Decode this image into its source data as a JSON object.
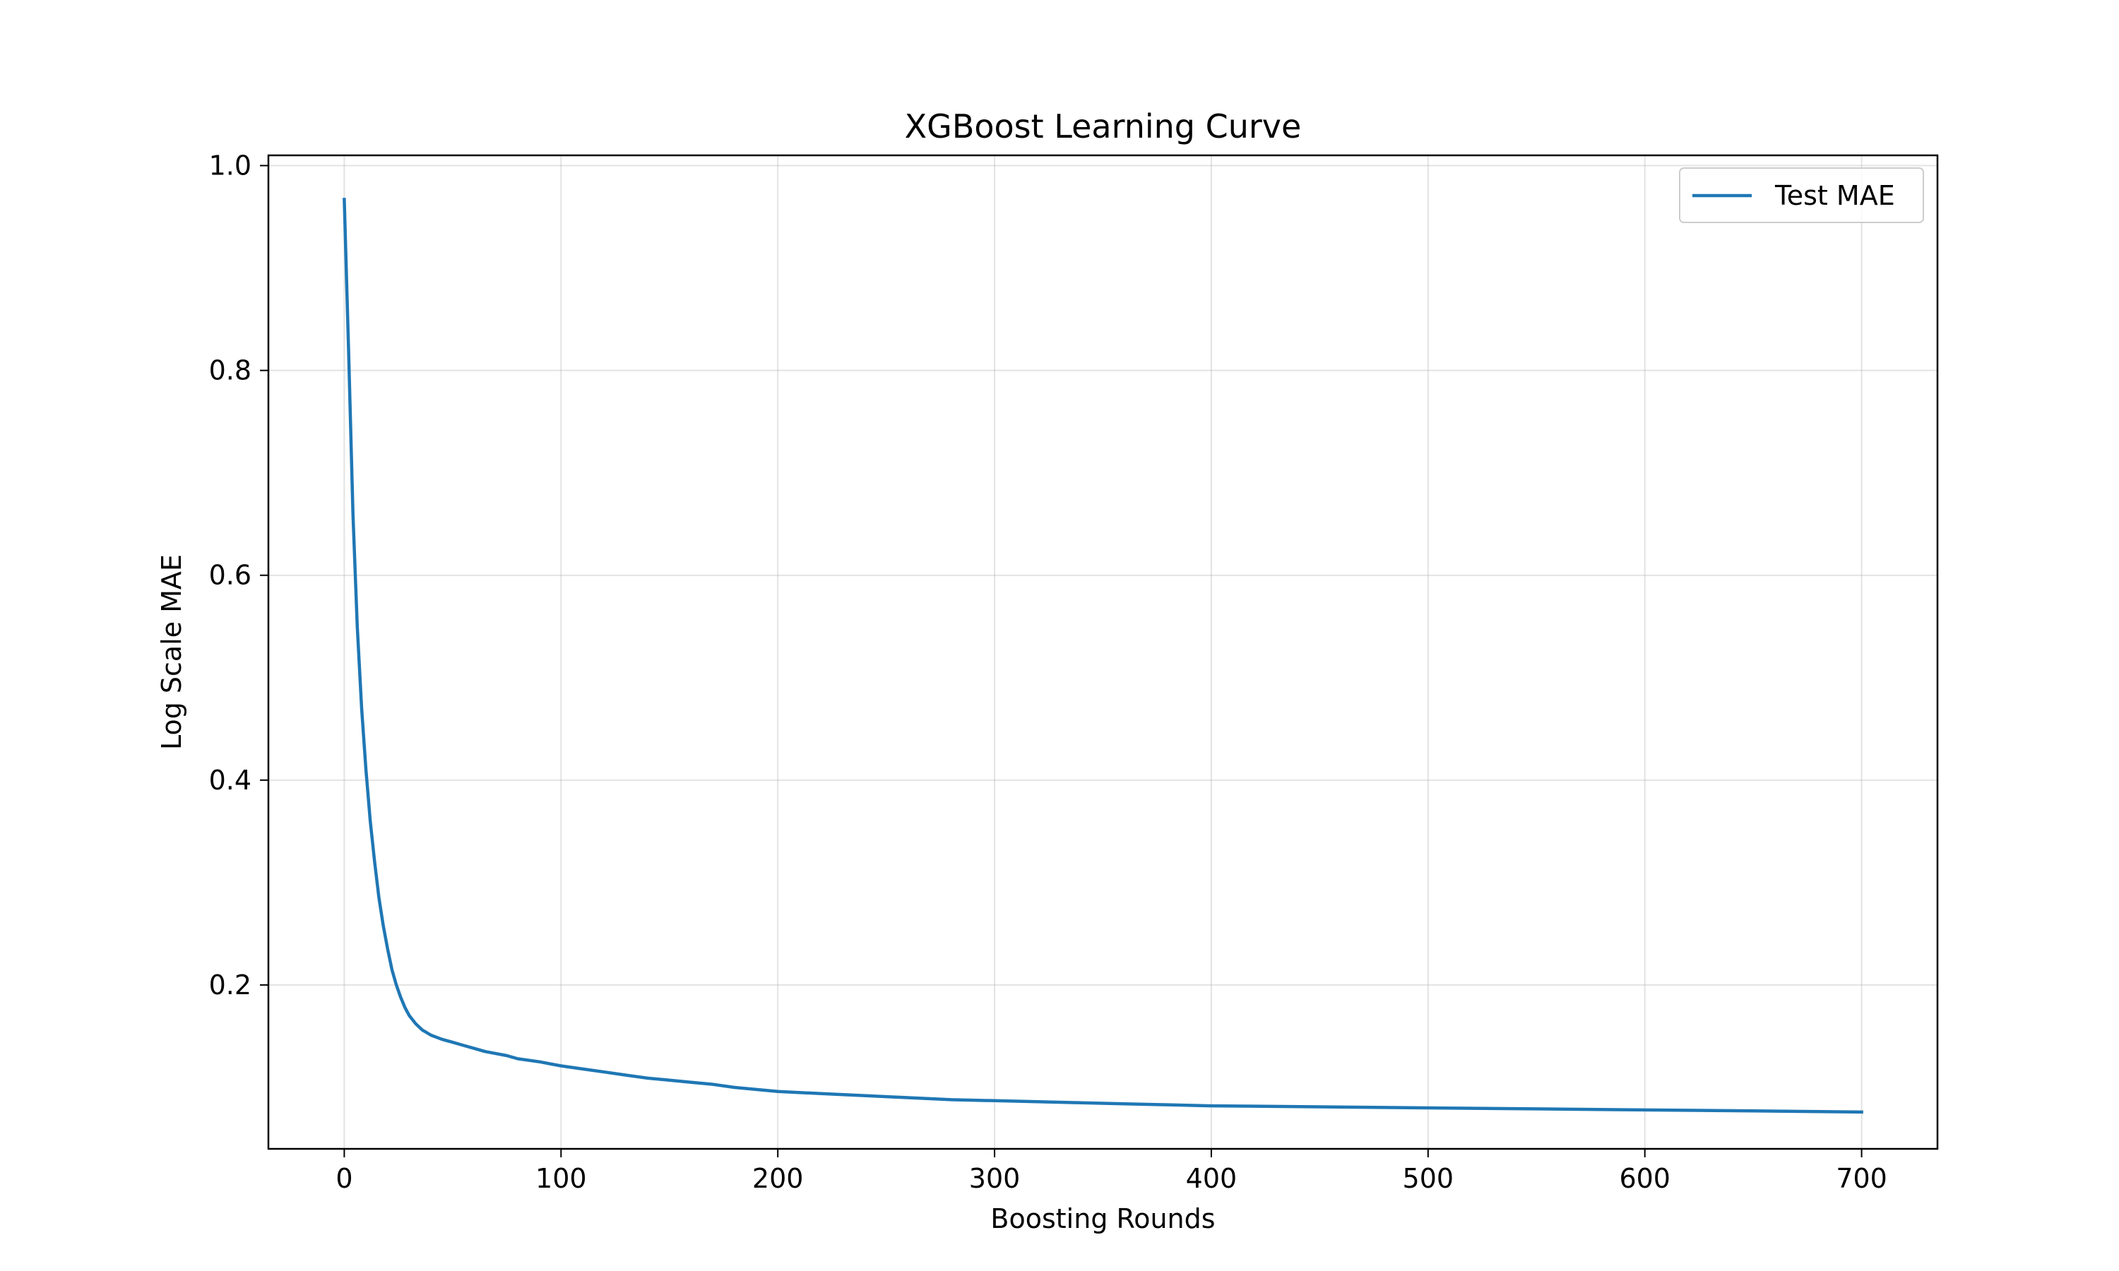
{
  "chart_data": {
    "type": "line",
    "title": "XGBoost Learning Curve",
    "xlabel": "Boosting Rounds",
    "ylabel": "Log Scale MAE",
    "xlim": [
      -35,
      735
    ],
    "ylim": [
      0.04,
      1.01
    ],
    "xticks": [
      0,
      100,
      200,
      300,
      400,
      500,
      600,
      700
    ],
    "xtick_labels": [
      "0",
      "100",
      "200",
      "300",
      "400",
      "500",
      "600",
      "700"
    ],
    "yticks": [
      0.2,
      0.4,
      0.6,
      0.8,
      1.0
    ],
    "ytick_labels": [
      "0.2",
      "0.4",
      "0.6",
      "0.8",
      "1.0"
    ],
    "grid": true,
    "legend_position": "top-right",
    "series": [
      {
        "name": "Test MAE",
        "color": "#1f77b4",
        "x": [
          0,
          2,
          4,
          6,
          8,
          10,
          12,
          14,
          16,
          18,
          20,
          22,
          24,
          26,
          28,
          30,
          33,
          36,
          40,
          45,
          50,
          55,
          60,
          65,
          70,
          75,
          80,
          90,
          100,
          110,
          120,
          130,
          140,
          150,
          160,
          170,
          180,
          190,
          200,
          220,
          240,
          260,
          280,
          300,
          320,
          340,
          360,
          380,
          400,
          450,
          500,
          550,
          600,
          650,
          700
        ],
        "y": [
          0.967,
          0.82,
          0.66,
          0.55,
          0.47,
          0.41,
          0.36,
          0.32,
          0.285,
          0.258,
          0.235,
          0.215,
          0.2,
          0.188,
          0.178,
          0.17,
          0.162,
          0.156,
          0.151,
          0.147,
          0.144,
          0.141,
          0.138,
          0.135,
          0.133,
          0.131,
          0.128,
          0.125,
          0.121,
          0.118,
          0.115,
          0.112,
          0.109,
          0.107,
          0.105,
          0.103,
          0.1,
          0.098,
          0.096,
          0.094,
          0.092,
          0.09,
          0.088,
          0.087,
          0.086,
          0.085,
          0.084,
          0.083,
          0.082,
          0.081,
          0.08,
          0.079,
          0.078,
          0.077,
          0.076
        ]
      }
    ]
  }
}
